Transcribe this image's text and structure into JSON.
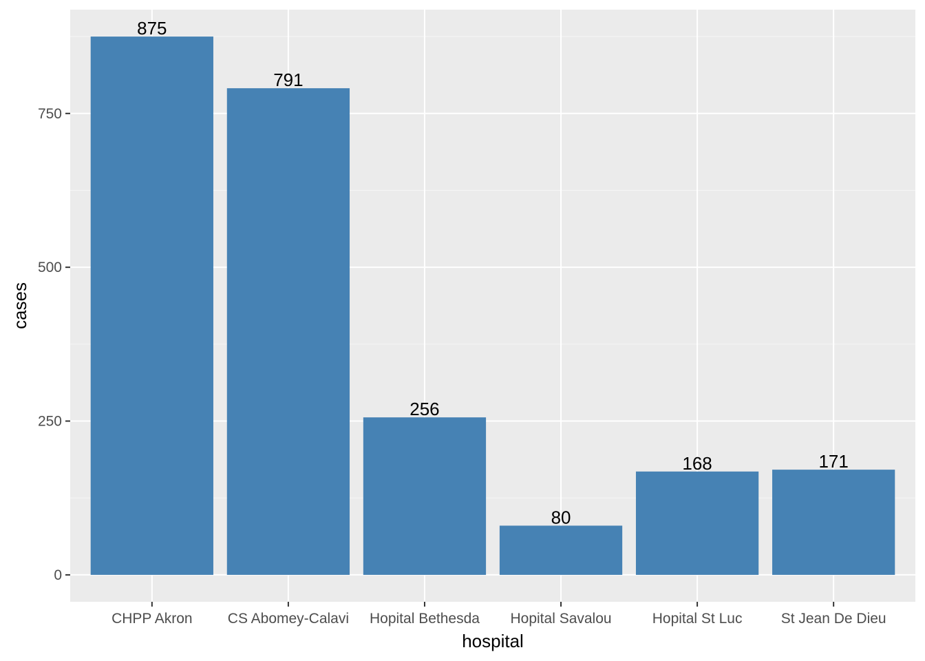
{
  "chart_data": {
    "type": "bar",
    "categories": [
      "CHPP Akron",
      "CS Abomey-Calavi",
      "Hopital Bethesda",
      "Hopital Savalou",
      "Hopital St Luc",
      "St Jean De Dieu"
    ],
    "values": [
      875,
      791,
      256,
      80,
      168,
      171
    ],
    "data_labels": [
      "875",
      "791",
      "256",
      "80",
      "168",
      "171"
    ],
    "xlabel": "hospital",
    "ylabel": "cases",
    "ylim": [
      -43.75,
      918.75
    ],
    "yticks": [
      0,
      250,
      500,
      750
    ],
    "ytick_labels": [
      "0",
      "250",
      "500",
      "750"
    ],
    "grid": true,
    "colors": {
      "bar": "#4682b4",
      "panel": "#ebebeb",
      "grid_major": "#ffffff",
      "grid_minor": "#f5f5f5",
      "ticks": "#333333"
    }
  }
}
